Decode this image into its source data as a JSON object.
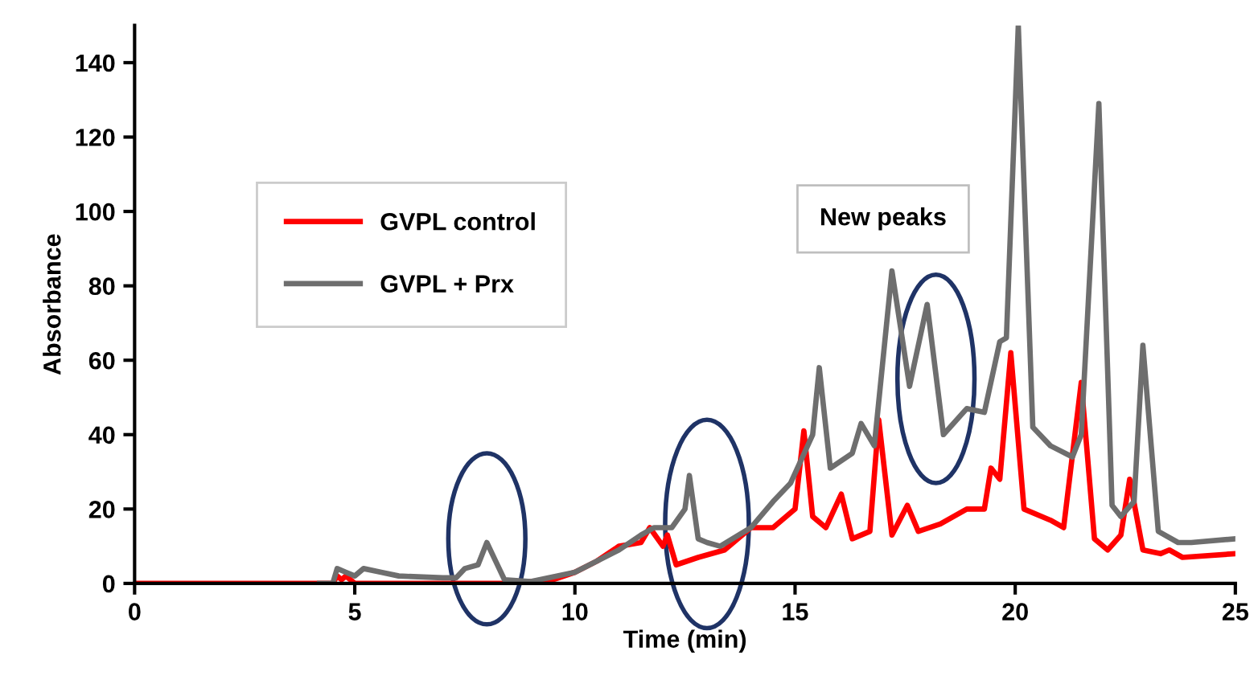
{
  "chart_data": {
    "type": "line",
    "xlabel": "Time (min)",
    "ylabel": "Absorbance",
    "xlim": [
      0,
      25
    ],
    "xticks": [
      0,
      5,
      10,
      15,
      20,
      25
    ],
    "ylim": [
      0,
      150
    ],
    "yticks": [
      0,
      20,
      40,
      60,
      80,
      100,
      120,
      140
    ],
    "grid": false,
    "legend": "top left",
    "marker": "none",
    "line_style": "solid",
    "annotations": [
      "New peaks"
    ],
    "series": [
      {
        "name": "GVPL control",
        "color": "#ff0000",
        "x": [
          0,
          4.5,
          4.6,
          4.7,
          4.8,
          5.0,
          8.5,
          9,
          9.5,
          10,
          10.5,
          11,
          11.5,
          11.7,
          12.0,
          12.1,
          12.3,
          12.8,
          13.4,
          14,
          14.5,
          15.0,
          15.2,
          15.4,
          15.7,
          16.05,
          16.3,
          16.7,
          16.9,
          17.2,
          17.55,
          17.8,
          18.3,
          18.9,
          19.3,
          19.45,
          19.65,
          19.9,
          20.2,
          20.8,
          21.1,
          21.5,
          21.8,
          22.1,
          22.4,
          22.6,
          22.9,
          23.3,
          23.5,
          23.8,
          25
        ],
        "values": [
          0,
          0,
          2,
          1,
          2,
          0,
          0,
          0.5,
          1,
          3,
          6,
          10,
          11,
          15,
          10,
          13,
          5,
          7,
          9,
          15,
          15,
          20,
          41,
          18,
          15,
          24,
          12,
          14,
          44,
          13,
          21,
          14,
          16,
          20,
          20,
          31,
          28,
          62,
          20,
          17,
          15,
          54,
          12,
          9,
          13,
          28,
          9,
          8,
          9,
          7,
          8
        ]
      },
      {
        "name": "GVPL + Prx",
        "color": "#6e6e6e",
        "x": [
          4.2,
          4.5,
          4.6,
          4.8,
          5.0,
          5.2,
          5.6,
          6,
          7,
          7.3,
          7.5,
          7.8,
          8.0,
          8.2,
          8.4,
          9,
          10,
          11,
          11.5,
          11.8,
          12.2,
          12.5,
          12.6,
          12.8,
          13.0,
          13.3,
          14,
          14.5,
          14.9,
          15.4,
          15.55,
          15.8,
          16.3,
          16.5,
          16.8,
          17.2,
          17.6,
          18.0,
          18.37,
          18.9,
          19.3,
          19.65,
          19.8,
          20.07,
          20.4,
          20.8,
          21.3,
          21.5,
          21.9,
          22.2,
          22.4,
          22.7,
          22.9,
          23.25,
          23.7,
          24,
          25
        ],
        "values": [
          0,
          0,
          4,
          3,
          2,
          4,
          3,
          2,
          1.5,
          1.5,
          4,
          5,
          11,
          6,
          1,
          0.5,
          3,
          9,
          13,
          15,
          15,
          20,
          29,
          12,
          11,
          10,
          15,
          22,
          27,
          40,
          58,
          31,
          35,
          43,
          37,
          84,
          53,
          75,
          40,
          47,
          46,
          65,
          66,
          150,
          42,
          37,
          34,
          40,
          129,
          21,
          18,
          22,
          64,
          14,
          11,
          11,
          12
        ]
      }
    ]
  }
}
